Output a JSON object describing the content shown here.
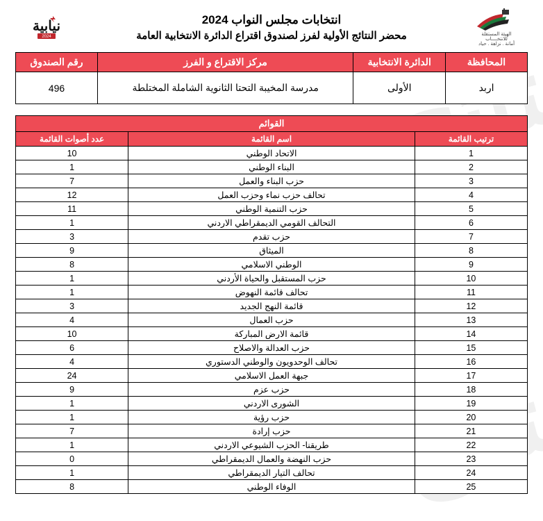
{
  "header": {
    "title_main": "انتخابات مجلس النواب 2024",
    "title_sub": "محضر النتائج الأولية لفرز لصندوق اقتراع الدائرة الانتخابية العامة",
    "logo_right_caption1": "الهيئة المستقلة",
    "logo_right_caption2": "للانتخــــاب",
    "logo_right_caption3": "أمانة . نزاهة . حياد",
    "logo_left_caption": "نيابية 2024"
  },
  "info": {
    "headers": {
      "governorate": "المحافظة",
      "district": "الدائرة الانتخابية",
      "center": "مركز الاقتراع و الفرز",
      "box": "رقم الصندوق"
    },
    "values": {
      "governorate": "اربد",
      "district": "الأولى",
      "center": "مدرسة المخيبة التحتا الثانوية الشاملة المختلطة",
      "box": "496"
    }
  },
  "lists": {
    "super_header": "القوائم",
    "headers": {
      "rank": "ترتيب القائمة",
      "name": "اسم القائمة",
      "votes": "عدد أصوات القائمة"
    },
    "rows": [
      {
        "rank": "1",
        "name": "الاتحاد الوطني",
        "votes": "10"
      },
      {
        "rank": "2",
        "name": "البناء الوطني",
        "votes": "1"
      },
      {
        "rank": "3",
        "name": "حزب البناء والعمل",
        "votes": "7"
      },
      {
        "rank": "4",
        "name": "تحالف حزب نماء وحزب العمل",
        "votes": "12"
      },
      {
        "rank": "5",
        "name": "حزب التنمية الوطني",
        "votes": "11"
      },
      {
        "rank": "6",
        "name": "التحالف القومي الديمقراطي الاردني",
        "votes": "1"
      },
      {
        "rank": "7",
        "name": "حزب تقدم",
        "votes": "3"
      },
      {
        "rank": "8",
        "name": "الميثاق",
        "votes": "9"
      },
      {
        "rank": "9",
        "name": "الوطني الاسلامي",
        "votes": "8"
      },
      {
        "rank": "10",
        "name": "حزب المستقبل والحياة الأردني",
        "votes": "1"
      },
      {
        "rank": "11",
        "name": "تحالف قائمة النهوض",
        "votes": "1"
      },
      {
        "rank": "12",
        "name": "قائمة النهج الجديد",
        "votes": "3"
      },
      {
        "rank": "13",
        "name": "حزب العمال",
        "votes": "4"
      },
      {
        "rank": "14",
        "name": "قائمة الارض المباركة",
        "votes": "10"
      },
      {
        "rank": "15",
        "name": "حزب العدالة والاصلاح",
        "votes": "6"
      },
      {
        "rank": "16",
        "name": "تحالف الوحدويون والوطني الدستوري",
        "votes": "4"
      },
      {
        "rank": "17",
        "name": "جبهة العمل الاسلامي",
        "votes": "24"
      },
      {
        "rank": "18",
        "name": "حزب عزم",
        "votes": "9"
      },
      {
        "rank": "19",
        "name": "الشورى الاردني",
        "votes": "1"
      },
      {
        "rank": "20",
        "name": "حزب رؤية",
        "votes": "1"
      },
      {
        "rank": "21",
        "name": "حزب إرادة",
        "votes": "7"
      },
      {
        "rank": "22",
        "name": "طريقنا- الحزب الشيوعي الاردني",
        "votes": "1"
      },
      {
        "rank": "23",
        "name": "حزب النهضة والعمال الديمقراطي",
        "votes": "0"
      },
      {
        "rank": "24",
        "name": "تحالف التيار الديمقراطي",
        "votes": "1"
      },
      {
        "rank": "25",
        "name": "الوفاء الوطني",
        "votes": "8"
      }
    ]
  },
  "style": {
    "header_bg": "#ee4b55",
    "header_fg": "#ffffff",
    "border_color": "#000000",
    "page_bg": "#ffffff"
  }
}
